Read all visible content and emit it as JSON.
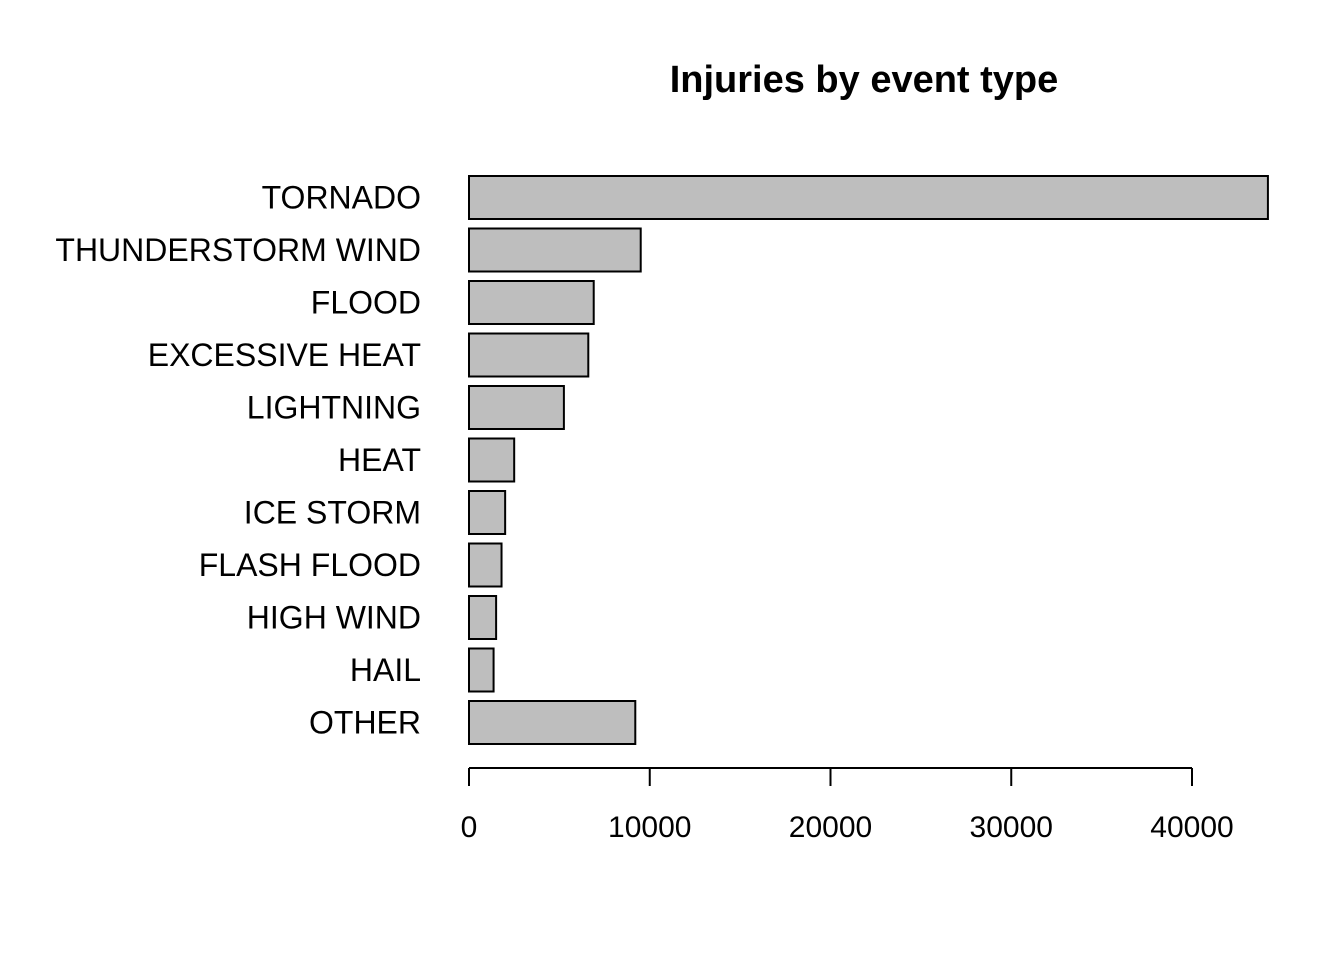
{
  "chart_data": {
    "type": "bar",
    "orientation": "horizontal",
    "title": "Injuries by event type",
    "xlabel": "",
    "ylabel": "",
    "categories": [
      "TORNADO",
      "THUNDERSTORM WIND",
      "FLOOD",
      "EXCESSIVE HEAT",
      "LIGHTNING",
      "HEAT",
      "ICE STORM",
      "FLASH FLOOD",
      "HIGH WIND",
      "HAIL",
      "OTHER"
    ],
    "values": [
      44200,
      9500,
      6900,
      6600,
      5250,
      2500,
      2000,
      1800,
      1500,
      1360,
      9200
    ],
    "xticks": [
      0,
      10000,
      20000,
      30000,
      40000
    ],
    "xtick_labels": [
      "0",
      "10000",
      "20000",
      "30000",
      "40000"
    ],
    "xlim": [
      0,
      44200
    ],
    "bar_color": "#bebebe",
    "edge_color": "#000000",
    "grid": false,
    "legend": "none"
  }
}
